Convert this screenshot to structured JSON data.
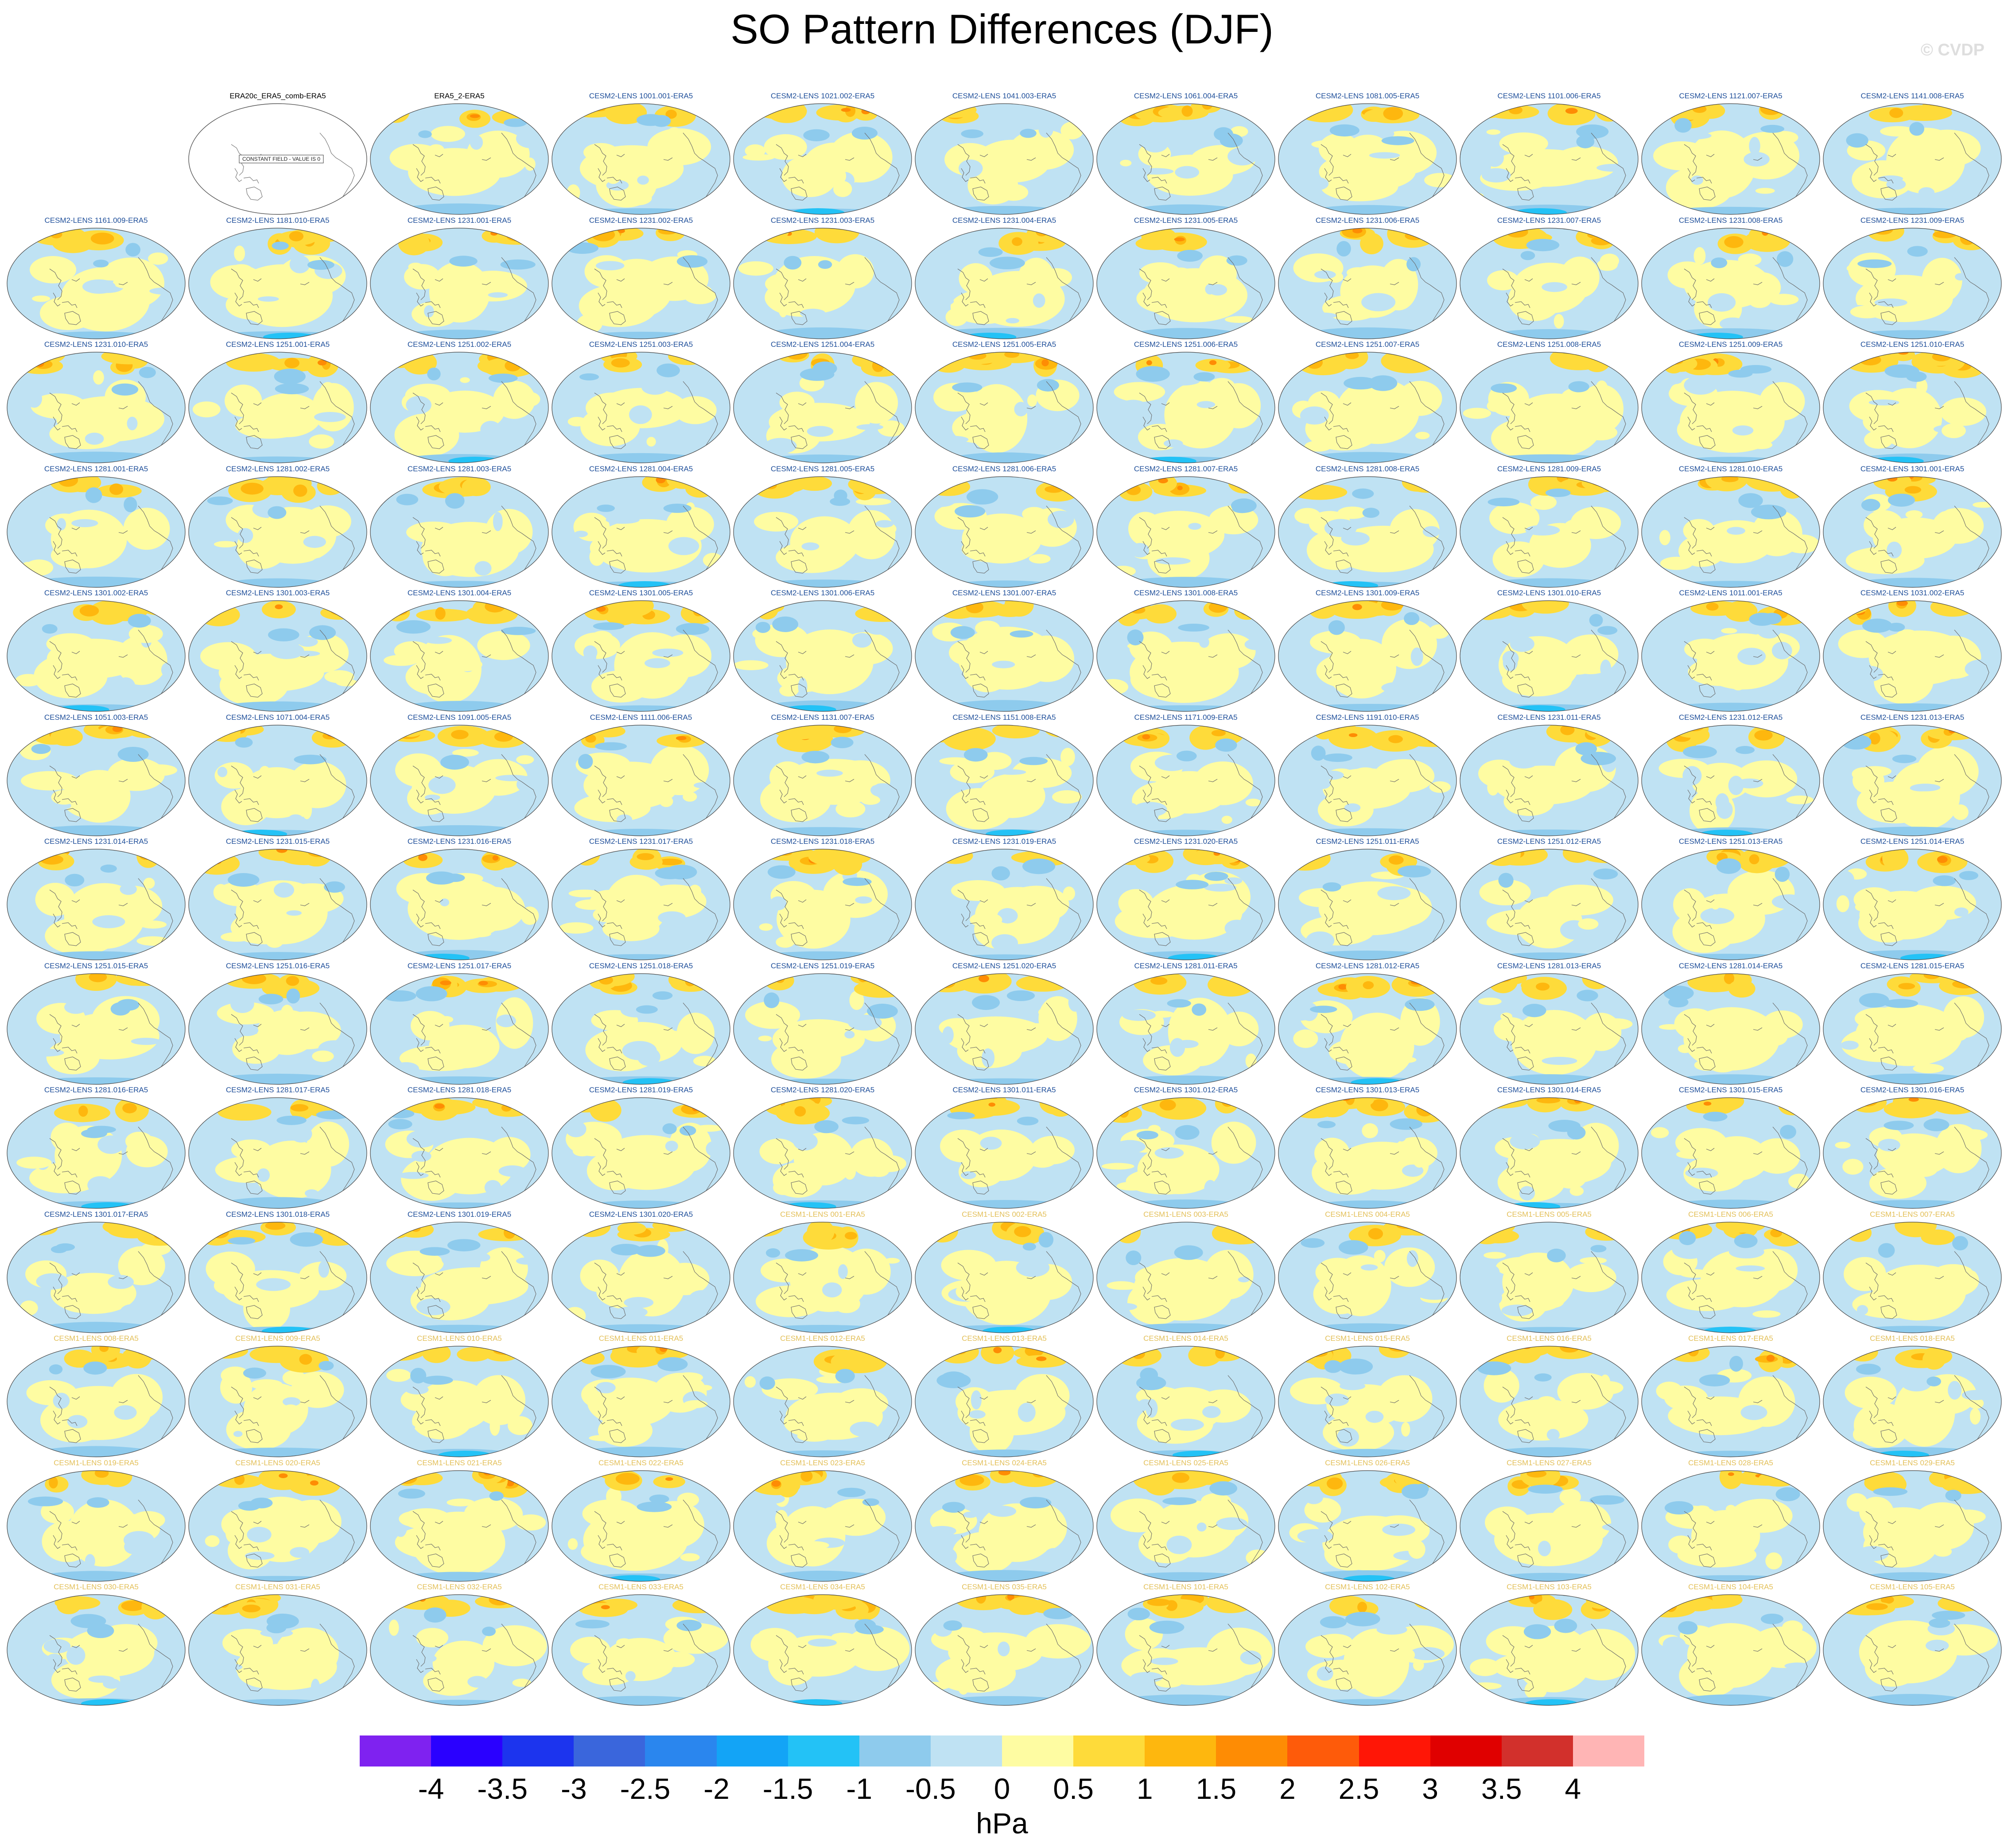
{
  "title": "SO Pattern Differences (DJF)",
  "credit": "© CVDP",
  "panel_title_colors": {
    "obs": "#000000",
    "cesm2": "#1f4f9a",
    "cesm1": "#e3c05a"
  },
  "panels": [
    {
      "title": "",
      "kind": "empty"
    },
    {
      "title": "ERA20c_ERA5_comb-ERA5",
      "kind": "constant",
      "group": "obs",
      "annotation": "CONSTANT FIELD - VALUE IS 0"
    },
    {
      "title": "ERA5_2-ERA5",
      "kind": "field",
      "group": "obs"
    },
    {
      "title": "CESM2-LENS 1001.001-ERA5",
      "kind": "field",
      "group": "cesm2"
    },
    {
      "title": "CESM2-LENS 1021.002-ERA5",
      "kind": "field",
      "group": "cesm2"
    },
    {
      "title": "CESM2-LENS 1041.003-ERA5",
      "kind": "field",
      "group": "cesm2"
    },
    {
      "title": "CESM2-LENS 1061.004-ERA5",
      "kind": "field",
      "group": "cesm2"
    },
    {
      "title": "CESM2-LENS 1081.005-ERA5",
      "kind": "field",
      "group": "cesm2"
    },
    {
      "title": "CESM2-LENS 1101.006-ERA5",
      "kind": "field",
      "group": "cesm2"
    },
    {
      "title": "CESM2-LENS 1121.007-ERA5",
      "kind": "field",
      "group": "cesm2"
    },
    {
      "title": "CESM2-LENS 1141.008-ERA5",
      "kind": "field",
      "group": "cesm2"
    },
    {
      "title": "CESM2-LENS 1161.009-ERA5",
      "kind": "field",
      "group": "cesm2"
    },
    {
      "title": "CESM2-LENS 1181.010-ERA5",
      "kind": "field",
      "group": "cesm2"
    },
    {
      "title": "CESM2-LENS 1231.001-ERA5",
      "kind": "field",
      "group": "cesm2"
    },
    {
      "title": "CESM2-LENS 1231.002-ERA5",
      "kind": "field",
      "group": "cesm2"
    },
    {
      "title": "CESM2-LENS 1231.003-ERA5",
      "kind": "field",
      "group": "cesm2"
    },
    {
      "title": "CESM2-LENS 1231.004-ERA5",
      "kind": "field",
      "group": "cesm2"
    },
    {
      "title": "CESM2-LENS 1231.005-ERA5",
      "kind": "field",
      "group": "cesm2"
    },
    {
      "title": "CESM2-LENS 1231.006-ERA5",
      "kind": "field",
      "group": "cesm2"
    },
    {
      "title": "CESM2-LENS 1231.007-ERA5",
      "kind": "field",
      "group": "cesm2"
    },
    {
      "title": "CESM2-LENS 1231.008-ERA5",
      "kind": "field",
      "group": "cesm2"
    },
    {
      "title": "CESM2-LENS 1231.009-ERA5",
      "kind": "field",
      "group": "cesm2"
    },
    {
      "title": "CESM2-LENS 1231.010-ERA5",
      "kind": "field",
      "group": "cesm2"
    },
    {
      "title": "CESM2-LENS 1251.001-ERA5",
      "kind": "field",
      "group": "cesm2"
    },
    {
      "title": "CESM2-LENS 1251.002-ERA5",
      "kind": "field",
      "group": "cesm2"
    },
    {
      "title": "CESM2-LENS 1251.003-ERA5",
      "kind": "field",
      "group": "cesm2"
    },
    {
      "title": "CESM2-LENS 1251.004-ERA5",
      "kind": "field",
      "group": "cesm2"
    },
    {
      "title": "CESM2-LENS 1251.005-ERA5",
      "kind": "field",
      "group": "cesm2"
    },
    {
      "title": "CESM2-LENS 1251.006-ERA5",
      "kind": "field",
      "group": "cesm2"
    },
    {
      "title": "CESM2-LENS 1251.007-ERA5",
      "kind": "field",
      "group": "cesm2"
    },
    {
      "title": "CESM2-LENS 1251.008-ERA5",
      "kind": "field",
      "group": "cesm2"
    },
    {
      "title": "CESM2-LENS 1251.009-ERA5",
      "kind": "field",
      "group": "cesm2"
    },
    {
      "title": "CESM2-LENS 1251.010-ERA5",
      "kind": "field",
      "group": "cesm2"
    },
    {
      "title": "CESM2-LENS 1281.001-ERA5",
      "kind": "field",
      "group": "cesm2"
    },
    {
      "title": "CESM2-LENS 1281.002-ERA5",
      "kind": "field",
      "group": "cesm2"
    },
    {
      "title": "CESM2-LENS 1281.003-ERA5",
      "kind": "field",
      "group": "cesm2"
    },
    {
      "title": "CESM2-LENS 1281.004-ERA5",
      "kind": "field",
      "group": "cesm2"
    },
    {
      "title": "CESM2-LENS 1281.005-ERA5",
      "kind": "field",
      "group": "cesm2"
    },
    {
      "title": "CESM2-LENS 1281.006-ERA5",
      "kind": "field",
      "group": "cesm2"
    },
    {
      "title": "CESM2-LENS 1281.007-ERA5",
      "kind": "field",
      "group": "cesm2"
    },
    {
      "title": "CESM2-LENS 1281.008-ERA5",
      "kind": "field",
      "group": "cesm2"
    },
    {
      "title": "CESM2-LENS 1281.009-ERA5",
      "kind": "field",
      "group": "cesm2"
    },
    {
      "title": "CESM2-LENS 1281.010-ERA5",
      "kind": "field",
      "group": "cesm2"
    },
    {
      "title": "CESM2-LENS 1301.001-ERA5",
      "kind": "field",
      "group": "cesm2"
    },
    {
      "title": "CESM2-LENS 1301.002-ERA5",
      "kind": "field",
      "group": "cesm2"
    },
    {
      "title": "CESM2-LENS 1301.003-ERA5",
      "kind": "field",
      "group": "cesm2"
    },
    {
      "title": "CESM2-LENS 1301.004-ERA5",
      "kind": "field",
      "group": "cesm2"
    },
    {
      "title": "CESM2-LENS 1301.005-ERA5",
      "kind": "field",
      "group": "cesm2"
    },
    {
      "title": "CESM2-LENS 1301.006-ERA5",
      "kind": "field",
      "group": "cesm2"
    },
    {
      "title": "CESM2-LENS 1301.007-ERA5",
      "kind": "field",
      "group": "cesm2"
    },
    {
      "title": "CESM2-LENS 1301.008-ERA5",
      "kind": "field",
      "group": "cesm2"
    },
    {
      "title": "CESM2-LENS 1301.009-ERA5",
      "kind": "field",
      "group": "cesm2"
    },
    {
      "title": "CESM2-LENS 1301.010-ERA5",
      "kind": "field",
      "group": "cesm2"
    },
    {
      "title": "CESM2-LENS 1011.001-ERA5",
      "kind": "field",
      "group": "cesm2"
    },
    {
      "title": "CESM2-LENS 1031.002-ERA5",
      "kind": "field",
      "group": "cesm2"
    },
    {
      "title": "CESM2-LENS 1051.003-ERA5",
      "kind": "field",
      "group": "cesm2"
    },
    {
      "title": "CESM2-LENS 1071.004-ERA5",
      "kind": "field",
      "group": "cesm2"
    },
    {
      "title": "CESM2-LENS 1091.005-ERA5",
      "kind": "field",
      "group": "cesm2"
    },
    {
      "title": "CESM2-LENS 1111.006-ERA5",
      "kind": "field",
      "group": "cesm2"
    },
    {
      "title": "CESM2-LENS 1131.007-ERA5",
      "kind": "field",
      "group": "cesm2"
    },
    {
      "title": "CESM2-LENS 1151.008-ERA5",
      "kind": "field",
      "group": "cesm2"
    },
    {
      "title": "CESM2-LENS 1171.009-ERA5",
      "kind": "field",
      "group": "cesm2"
    },
    {
      "title": "CESM2-LENS 1191.010-ERA5",
      "kind": "field",
      "group": "cesm2"
    },
    {
      "title": "CESM2-LENS 1231.011-ERA5",
      "kind": "field",
      "group": "cesm2"
    },
    {
      "title": "CESM2-LENS 1231.012-ERA5",
      "kind": "field",
      "group": "cesm2"
    },
    {
      "title": "CESM2-LENS 1231.013-ERA5",
      "kind": "field",
      "group": "cesm2"
    },
    {
      "title": "CESM2-LENS 1231.014-ERA5",
      "kind": "field",
      "group": "cesm2"
    },
    {
      "title": "CESM2-LENS 1231.015-ERA5",
      "kind": "field",
      "group": "cesm2"
    },
    {
      "title": "CESM2-LENS 1231.016-ERA5",
      "kind": "field",
      "group": "cesm2"
    },
    {
      "title": "CESM2-LENS 1231.017-ERA5",
      "kind": "field",
      "group": "cesm2"
    },
    {
      "title": "CESM2-LENS 1231.018-ERA5",
      "kind": "field",
      "group": "cesm2"
    },
    {
      "title": "CESM2-LENS 1231.019-ERA5",
      "kind": "field",
      "group": "cesm2"
    },
    {
      "title": "CESM2-LENS 1231.020-ERA5",
      "kind": "field",
      "group": "cesm2"
    },
    {
      "title": "CESM2-LENS 1251.011-ERA5",
      "kind": "field",
      "group": "cesm2"
    },
    {
      "title": "CESM2-LENS 1251.012-ERA5",
      "kind": "field",
      "group": "cesm2"
    },
    {
      "title": "CESM2-LENS 1251.013-ERA5",
      "kind": "field",
      "group": "cesm2"
    },
    {
      "title": "CESM2-LENS 1251.014-ERA5",
      "kind": "field",
      "group": "cesm2"
    },
    {
      "title": "CESM2-LENS 1251.015-ERA5",
      "kind": "field",
      "group": "cesm2"
    },
    {
      "title": "CESM2-LENS 1251.016-ERA5",
      "kind": "field",
      "group": "cesm2"
    },
    {
      "title": "CESM2-LENS 1251.017-ERA5",
      "kind": "field",
      "group": "cesm2"
    },
    {
      "title": "CESM2-LENS 1251.018-ERA5",
      "kind": "field",
      "group": "cesm2"
    },
    {
      "title": "CESM2-LENS 1251.019-ERA5",
      "kind": "field",
      "group": "cesm2"
    },
    {
      "title": "CESM2-LENS 1251.020-ERA5",
      "kind": "field",
      "group": "cesm2"
    },
    {
      "title": "CESM2-LENS 1281.011-ERA5",
      "kind": "field",
      "group": "cesm2"
    },
    {
      "title": "CESM2-LENS 1281.012-ERA5",
      "kind": "field",
      "group": "cesm2"
    },
    {
      "title": "CESM2-LENS 1281.013-ERA5",
      "kind": "field",
      "group": "cesm2"
    },
    {
      "title": "CESM2-LENS 1281.014-ERA5",
      "kind": "field",
      "group": "cesm2"
    },
    {
      "title": "CESM2-LENS 1281.015-ERA5",
      "kind": "field",
      "group": "cesm2"
    },
    {
      "title": "CESM2-LENS 1281.016-ERA5",
      "kind": "field",
      "group": "cesm2"
    },
    {
      "title": "CESM2-LENS 1281.017-ERA5",
      "kind": "field",
      "group": "cesm2"
    },
    {
      "title": "CESM2-LENS 1281.018-ERA5",
      "kind": "field",
      "group": "cesm2"
    },
    {
      "title": "CESM2-LENS 1281.019-ERA5",
      "kind": "field",
      "group": "cesm2"
    },
    {
      "title": "CESM2-LENS 1281.020-ERA5",
      "kind": "field",
      "group": "cesm2"
    },
    {
      "title": "CESM2-LENS 1301.011-ERA5",
      "kind": "field",
      "group": "cesm2"
    },
    {
      "title": "CESM2-LENS 1301.012-ERA5",
      "kind": "field",
      "group": "cesm2"
    },
    {
      "title": "CESM2-LENS 1301.013-ERA5",
      "kind": "field",
      "group": "cesm2"
    },
    {
      "title": "CESM2-LENS 1301.014-ERA5",
      "kind": "field",
      "group": "cesm2"
    },
    {
      "title": "CESM2-LENS 1301.015-ERA5",
      "kind": "field",
      "group": "cesm2"
    },
    {
      "title": "CESM2-LENS 1301.016-ERA5",
      "kind": "field",
      "group": "cesm2"
    },
    {
      "title": "CESM2-LENS 1301.017-ERA5",
      "kind": "field",
      "group": "cesm2"
    },
    {
      "title": "CESM2-LENS 1301.018-ERA5",
      "kind": "field",
      "group": "cesm2"
    },
    {
      "title": "CESM2-LENS 1301.019-ERA5",
      "kind": "field",
      "group": "cesm2"
    },
    {
      "title": "CESM2-LENS 1301.020-ERA5",
      "kind": "field",
      "group": "cesm2"
    },
    {
      "title": "CESM1-LENS 001-ERA5",
      "kind": "field",
      "group": "cesm1"
    },
    {
      "title": "CESM1-LENS 002-ERA5",
      "kind": "field",
      "group": "cesm1"
    },
    {
      "title": "CESM1-LENS 003-ERA5",
      "kind": "field",
      "group": "cesm1"
    },
    {
      "title": "CESM1-LENS 004-ERA5",
      "kind": "field",
      "group": "cesm1"
    },
    {
      "title": "CESM1-LENS 005-ERA5",
      "kind": "field",
      "group": "cesm1"
    },
    {
      "title": "CESM1-LENS 006-ERA5",
      "kind": "field",
      "group": "cesm1"
    },
    {
      "title": "CESM1-LENS 007-ERA5",
      "kind": "field",
      "group": "cesm1"
    },
    {
      "title": "CESM1-LENS 008-ERA5",
      "kind": "field",
      "group": "cesm1"
    },
    {
      "title": "CESM1-LENS 009-ERA5",
      "kind": "field",
      "group": "cesm1"
    },
    {
      "title": "CESM1-LENS 010-ERA5",
      "kind": "field",
      "group": "cesm1"
    },
    {
      "title": "CESM1-LENS 011-ERA5",
      "kind": "field",
      "group": "cesm1"
    },
    {
      "title": "CESM1-LENS 012-ERA5",
      "kind": "field",
      "group": "cesm1"
    },
    {
      "title": "CESM1-LENS 013-ERA5",
      "kind": "field",
      "group": "cesm1"
    },
    {
      "title": "CESM1-LENS 014-ERA5",
      "kind": "field",
      "group": "cesm1"
    },
    {
      "title": "CESM1-LENS 015-ERA5",
      "kind": "field",
      "group": "cesm1"
    },
    {
      "title": "CESM1-LENS 016-ERA5",
      "kind": "field",
      "group": "cesm1"
    },
    {
      "title": "CESM1-LENS 017-ERA5",
      "kind": "field",
      "group": "cesm1"
    },
    {
      "title": "CESM1-LENS 018-ERA5",
      "kind": "field",
      "group": "cesm1"
    },
    {
      "title": "CESM1-LENS 019-ERA5",
      "kind": "field",
      "group": "cesm1"
    },
    {
      "title": "CESM1-LENS 020-ERA5",
      "kind": "field",
      "group": "cesm1"
    },
    {
      "title": "CESM1-LENS 021-ERA5",
      "kind": "field",
      "group": "cesm1"
    },
    {
      "title": "CESM1-LENS 022-ERA5",
      "kind": "field",
      "group": "cesm1"
    },
    {
      "title": "CESM1-LENS 023-ERA5",
      "kind": "field",
      "group": "cesm1"
    },
    {
      "title": "CESM1-LENS 024-ERA5",
      "kind": "field",
      "group": "cesm1"
    },
    {
      "title": "CESM1-LENS 025-ERA5",
      "kind": "field",
      "group": "cesm1"
    },
    {
      "title": "CESM1-LENS 026-ERA5",
      "kind": "field",
      "group": "cesm1"
    },
    {
      "title": "CESM1-LENS 027-ERA5",
      "kind": "field",
      "group": "cesm1"
    },
    {
      "title": "CESM1-LENS 028-ERA5",
      "kind": "field",
      "group": "cesm1"
    },
    {
      "title": "CESM1-LENS 029-ERA5",
      "kind": "field",
      "group": "cesm1"
    },
    {
      "title": "CESM1-LENS 030-ERA5",
      "kind": "field",
      "group": "cesm1"
    },
    {
      "title": "CESM1-LENS 031-ERA5",
      "kind": "field",
      "group": "cesm1"
    },
    {
      "title": "CESM1-LENS 032-ERA5",
      "kind": "field",
      "group": "cesm1"
    },
    {
      "title": "CESM1-LENS 033-ERA5",
      "kind": "field",
      "group": "cesm1"
    },
    {
      "title": "CESM1-LENS 034-ERA5",
      "kind": "field",
      "group": "cesm1"
    },
    {
      "title": "CESM1-LENS 035-ERA5",
      "kind": "field",
      "group": "cesm1"
    },
    {
      "title": "CESM1-LENS 101-ERA5",
      "kind": "field",
      "group": "cesm1"
    },
    {
      "title": "CESM1-LENS 102-ERA5",
      "kind": "field",
      "group": "cesm1"
    },
    {
      "title": "CESM1-LENS 103-ERA5",
      "kind": "field",
      "group": "cesm1"
    },
    {
      "title": "CESM1-LENS 104-ERA5",
      "kind": "field",
      "group": "cesm1"
    },
    {
      "title": "CESM1-LENS 105-ERA5",
      "kind": "field",
      "group": "cesm1"
    }
  ],
  "colorbar": {
    "labels": [
      "-4",
      "-3.5",
      "-3",
      "-2.5",
      "-2",
      "-1.5",
      "-1",
      "-0.5",
      "0",
      "0.5",
      "1",
      "1.5",
      "2",
      "2.5",
      "3",
      "3.5",
      "4"
    ],
    "colors": [
      "#7f22f0",
      "#2a00ff",
      "#1c34ee",
      "#3a66dc",
      "#2a86ee",
      "#13a4f6",
      "#23c2f6",
      "#8ecbed",
      "#bfe2f3",
      "#fefca2",
      "#fedb3a",
      "#feb70e",
      "#fe8c04",
      "#fe5b0a",
      "#ff1606",
      "#e00000",
      "#d2302c",
      "#ffb5b5"
    ],
    "units": "hPa"
  }
}
